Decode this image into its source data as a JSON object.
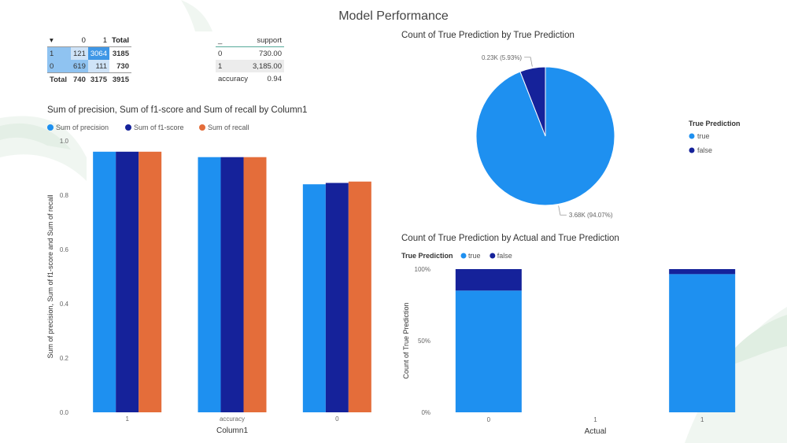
{
  "page_title": "Model Performance",
  "matrix": {
    "header": [
      "0",
      "1",
      "Total"
    ],
    "rows": [
      {
        "label": "1",
        "c0": "121",
        "c1": "3064",
        "total": "3185"
      },
      {
        "label": "0",
        "c0": "619",
        "c1": "111",
        "total": "730"
      }
    ],
    "total_row": {
      "label": "Total",
      "c0": "740",
      "c1": "3175",
      "total": "3915"
    }
  },
  "support_table": {
    "header": [
      "_",
      "support"
    ],
    "rows": [
      {
        "label": "0",
        "value": "730.00"
      },
      {
        "label": "1",
        "value": "3,185.00"
      },
      {
        "label": "accuracy",
        "value": "0.94"
      }
    ]
  },
  "colors": {
    "light_blue": "#1e90f0",
    "dark_blue": "#15229a",
    "orange": "#e46d3a"
  },
  "chart_data": [
    {
      "type": "bar",
      "title": "Sum of precision, Sum of f1-score and Sum of recall by Column1",
      "categories": [
        "1",
        "accuracy",
        "0"
      ],
      "series": [
        {
          "name": "Sum of precision",
          "values": [
            0.96,
            0.94,
            0.84
          ],
          "color": "#1e90f0"
        },
        {
          "name": "Sum of f1-score",
          "values": [
            0.96,
            0.94,
            0.845
          ],
          "color": "#15229a"
        },
        {
          "name": "Sum of recall",
          "values": [
            0.96,
            0.94,
            0.85
          ],
          "color": "#e46d3a"
        }
      ],
      "xlabel": "Column1",
      "ylabel": "Sum of precision, Sum of f1-score and Sum of recall",
      "ylim": [
        0,
        1.0
      ],
      "yticks": [
        "0.0",
        "0.2",
        "0.4",
        "0.6",
        "0.8",
        "1.0"
      ],
      "legend": "top-left",
      "grid": false
    },
    {
      "type": "pie",
      "title": "Count of True Prediction by True Prediction",
      "slices": [
        {
          "name": "true",
          "value": 94.07,
          "label": "3.68K (94.07%)",
          "color": "#1e90f0"
        },
        {
          "name": "false",
          "value": 5.93,
          "label": "0.23K (5.93%)",
          "color": "#15229a"
        }
      ],
      "legend_title": "True Prediction",
      "legend": "right"
    },
    {
      "type": "bar",
      "stacked": true,
      "title": "Count of True Prediction by Actual and True Prediction",
      "categories": [
        "0",
        "1",
        "1"
      ],
      "series": [
        {
          "name": "true",
          "values": [
            0.85,
            0,
            0.965
          ],
          "color": "#1e90f0"
        },
        {
          "name": "false",
          "values": [
            0.15,
            0,
            0.035
          ],
          "color": "#15229a"
        }
      ],
      "legend_title": "True Prediction",
      "xlabel": "Actual",
      "ylabel": "Count of True Prediction",
      "yticks": [
        "0%",
        "50%",
        "100%"
      ],
      "legend": "top-left"
    }
  ]
}
